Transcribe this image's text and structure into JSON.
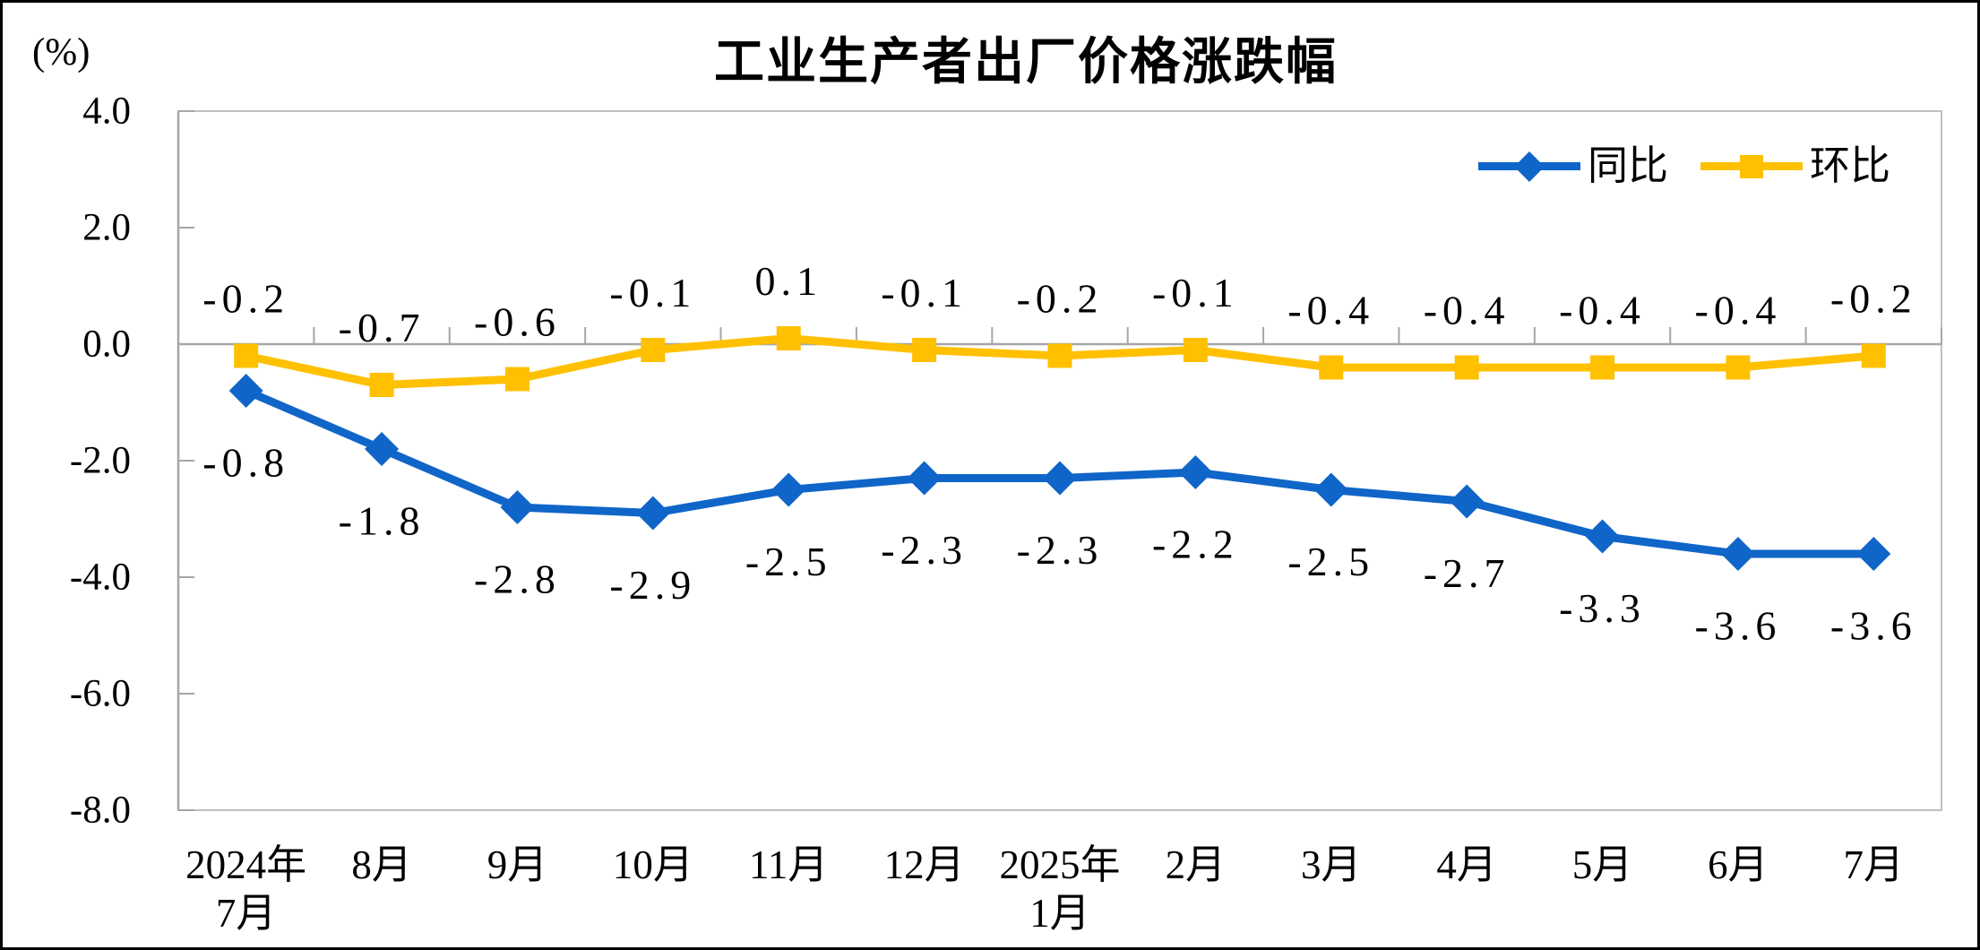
{
  "title": "工业生产者出厂价格涨跌幅",
  "unit_label": "(%)",
  "chart_data": {
    "type": "line",
    "title": "工业生产者出厂价格涨跌幅",
    "ylabel": "(%)",
    "ylim": [
      -8.0,
      4.0
    ],
    "y_tick_step": 2.0,
    "y_tick_labels": [
      "4.0",
      "2.0",
      "0.0",
      "-2.0",
      "-4.0",
      "-6.0",
      "-8.0"
    ],
    "grid": false,
    "legend_position": "top-right",
    "categories": [
      [
        "2024年",
        "7月"
      ],
      [
        "8月"
      ],
      [
        "9月"
      ],
      [
        "10月"
      ],
      [
        "11月"
      ],
      [
        "12月"
      ],
      [
        "2025年",
        "1月"
      ],
      [
        "2月"
      ],
      [
        "3月"
      ],
      [
        "4月"
      ],
      [
        "5月"
      ],
      [
        "6月"
      ],
      [
        "7月"
      ]
    ],
    "series": [
      {
        "name": "同比",
        "color": "#1065C8",
        "marker": "diamond",
        "label_side": "below",
        "values": [
          -0.8,
          -1.8,
          -2.8,
          -2.9,
          -2.5,
          -2.3,
          -2.3,
          -2.2,
          -2.5,
          -2.7,
          -3.3,
          -3.6,
          -3.6
        ],
        "labels": [
          "-0.8",
          "-1.8",
          "-2.8",
          "-2.9",
          "-2.5",
          "-2.3",
          "-2.3",
          "-2.2",
          "-2.5",
          "-2.7",
          "-3.3",
          "-3.6",
          "-3.6"
        ]
      },
      {
        "name": "环比",
        "color": "#FFC000",
        "marker": "square",
        "label_side": "above",
        "values": [
          -0.2,
          -0.7,
          -0.6,
          -0.1,
          0.1,
          -0.1,
          -0.2,
          -0.1,
          -0.4,
          -0.4,
          -0.4,
          -0.4,
          -0.2
        ],
        "labels": [
          "-0.2",
          "-0.7",
          "-0.6",
          "-0.1",
          "0.1",
          "-0.1",
          "-0.2",
          "-0.1",
          "-0.4",
          "-0.4",
          "-0.4",
          "-0.4",
          "-0.2"
        ]
      }
    ],
    "colors": {
      "axis": "#A6A6A6",
      "plot_border": "#BFBFBF",
      "text": "#000000",
      "frame": "#000000",
      "background": "#FFFFFF"
    }
  }
}
